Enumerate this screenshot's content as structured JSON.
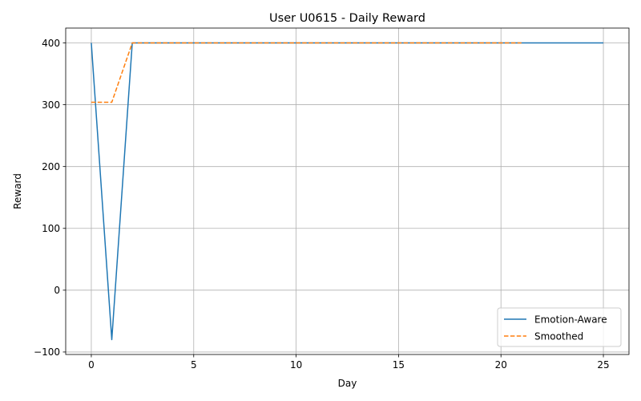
{
  "chart_data": {
    "type": "line",
    "title": "User U0615 - Daily Reward",
    "xlabel": "Day",
    "ylabel": "Reward",
    "xlim": [
      -1.25,
      26.25
    ],
    "ylim": [
      -104,
      424
    ],
    "xticks": [
      0,
      5,
      10,
      15,
      20,
      25
    ],
    "yticks": [
      -100,
      0,
      100,
      200,
      300,
      400
    ],
    "ytick_labels": [
      "−100",
      "0",
      "100",
      "200",
      "300",
      "400"
    ],
    "xtick_labels": [
      "0",
      "5",
      "10",
      "15",
      "20",
      "25"
    ],
    "grid": true,
    "legend_position": "lower-right",
    "series": [
      {
        "name": "Emotion-Aware",
        "color": "#1f77b4",
        "style": "solid",
        "x": [
          0,
          1,
          2,
          3,
          4,
          5,
          6,
          7,
          8,
          9,
          10,
          11,
          12,
          13,
          14,
          15,
          16,
          17,
          18,
          19,
          20,
          21,
          22,
          23,
          24,
          25
        ],
        "y": [
          400,
          -80,
          400,
          400,
          400,
          400,
          400,
          400,
          400,
          400,
          400,
          400,
          400,
          400,
          400,
          400,
          400,
          400,
          400,
          400,
          400,
          400,
          400,
          400,
          400,
          400
        ]
      },
      {
        "name": "Smoothed",
        "color": "#ff7f0e",
        "style": "dashed",
        "x": [
          0,
          1,
          2,
          3,
          4,
          5,
          6,
          7,
          8,
          9,
          10,
          11,
          12,
          13,
          14,
          15,
          16,
          17,
          18,
          19,
          20,
          21
        ],
        "y": [
          304,
          304,
          400,
          400,
          400,
          400,
          400,
          400,
          400,
          400,
          400,
          400,
          400,
          400,
          400,
          400,
          400,
          400,
          400,
          400,
          400,
          400
        ]
      }
    ]
  }
}
